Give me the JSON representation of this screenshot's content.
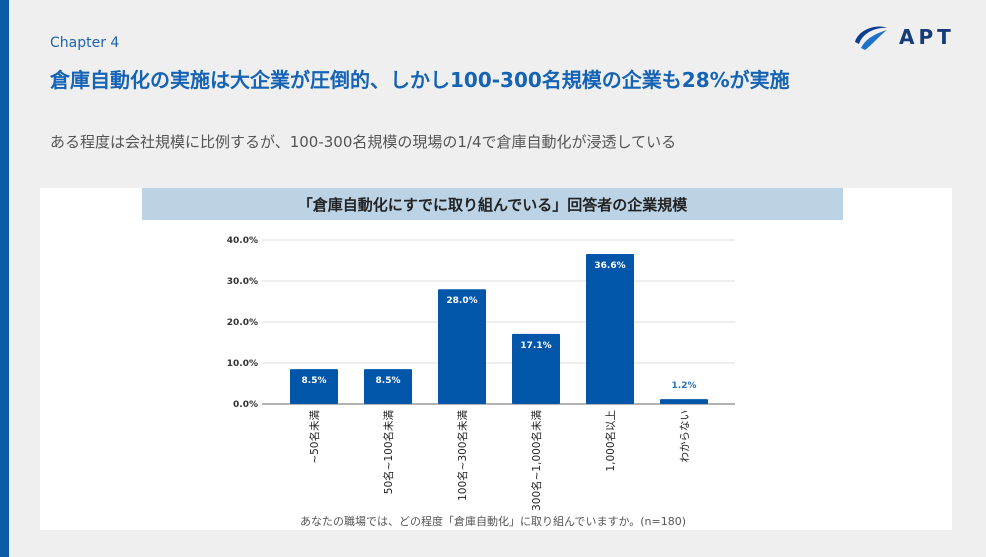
{
  "chapter": "Chapter 4",
  "title": "倉庫自動化の実施は大企業が圧倒的、しかし100-300名規模の企業も28%が実施",
  "subtitle": "ある程度は会社規模に比例するが、100-300名規模の現場の1/4で倉庫自動化が浸透している",
  "logo": {
    "text": "APT"
  },
  "colors": {
    "accent": "#0b5aa8",
    "bar": "#0256aa",
    "band": "#bcd3e6"
  },
  "chart_data": {
    "type": "bar",
    "title": "「倉庫自動化にすでに取り組んでいる」回答者の企業規模",
    "xlabel": "あなたの職場では、どの程度「倉庫自動化」に取り組んでいますか。(n=180)",
    "categories": [
      "~50名未満",
      "50名~100名未満",
      "100名~300名未満",
      "300名~1,000名未満",
      "1,000名以上",
      "わからない"
    ],
    "values": [
      8.5,
      8.5,
      28.0,
      17.1,
      36.6,
      1.2
    ],
    "data_labels": [
      "8.5%",
      "8.5%",
      "28.0%",
      "17.1%",
      "36.6%",
      "1.2%"
    ],
    "yticks": [
      "0.0%",
      "10.0%",
      "20.0%",
      "30.0%",
      "40.0%"
    ],
    "ylim": [
      0,
      40
    ],
    "grid": true
  }
}
